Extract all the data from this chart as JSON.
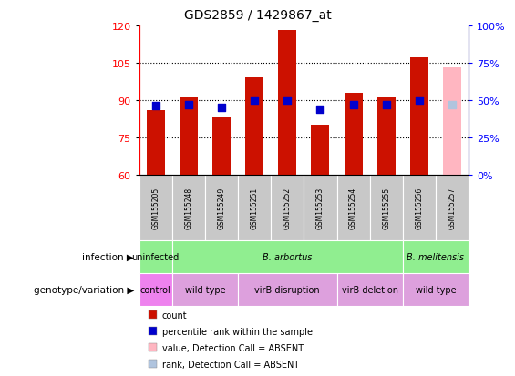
{
  "title": "GDS2859 / 1429867_at",
  "samples": [
    "GSM155205",
    "GSM155248",
    "GSM155249",
    "GSM155251",
    "GSM155252",
    "GSM155253",
    "GSM155254",
    "GSM155255",
    "GSM155256",
    "GSM155257"
  ],
  "counts": [
    86,
    91,
    83,
    99,
    118,
    80,
    93,
    91,
    107,
    103
  ],
  "count_absent": [
    false,
    false,
    false,
    false,
    false,
    false,
    false,
    false,
    false,
    true
  ],
  "percentile_ranks": [
    46,
    47,
    45,
    50,
    50,
    44,
    47,
    47,
    50,
    47
  ],
  "rank_absent": [
    false,
    false,
    false,
    false,
    false,
    false,
    false,
    false,
    false,
    true
  ],
  "ylim_left": [
    60,
    120
  ],
  "ylim_right": [
    0,
    100
  ],
  "yticks_left": [
    60,
    75,
    90,
    105,
    120
  ],
  "yticks_right": [
    0,
    25,
    50,
    75,
    100
  ],
  "ytick_labels_right": [
    "0%",
    "25%",
    "50%",
    "75%",
    "100%"
  ],
  "infect_data": [
    {
      "label": "uninfected",
      "start": 0,
      "end": 1,
      "color": "#90ee90"
    },
    {
      "label": "B. arbortus",
      "start": 1,
      "end": 8,
      "color": "#90ee90"
    },
    {
      "label": "B. melitensis",
      "start": 8,
      "end": 10,
      "color": "#90ee90"
    }
  ],
  "geno_data": [
    {
      "label": "control",
      "start": 0,
      "end": 1,
      "color": "#ee82ee"
    },
    {
      "label": "wild type",
      "start": 1,
      "end": 3,
      "color": "#dda0dd"
    },
    {
      "label": "virB disruption",
      "start": 3,
      "end": 6,
      "color": "#dda0dd"
    },
    {
      "label": "virB deletion",
      "start": 6,
      "end": 8,
      "color": "#dda0dd"
    },
    {
      "label": "wild type",
      "start": 8,
      "end": 10,
      "color": "#dda0dd"
    }
  ],
  "bar_color_normal": "#cc1100",
  "bar_color_absent": "#ffb6c1",
  "rank_color_normal": "#0000cc",
  "rank_color_absent": "#b0c4de",
  "bar_width": 0.55,
  "rank_marker_size": 28,
  "legend_items": [
    {
      "color": "#cc1100",
      "label": "count"
    },
    {
      "color": "#0000cc",
      "label": "percentile rank within the sample"
    },
    {
      "color": "#ffb6c1",
      "label": "value, Detection Call = ABSENT"
    },
    {
      "color": "#b0c4de",
      "label": "rank, Detection Call = ABSENT"
    }
  ]
}
